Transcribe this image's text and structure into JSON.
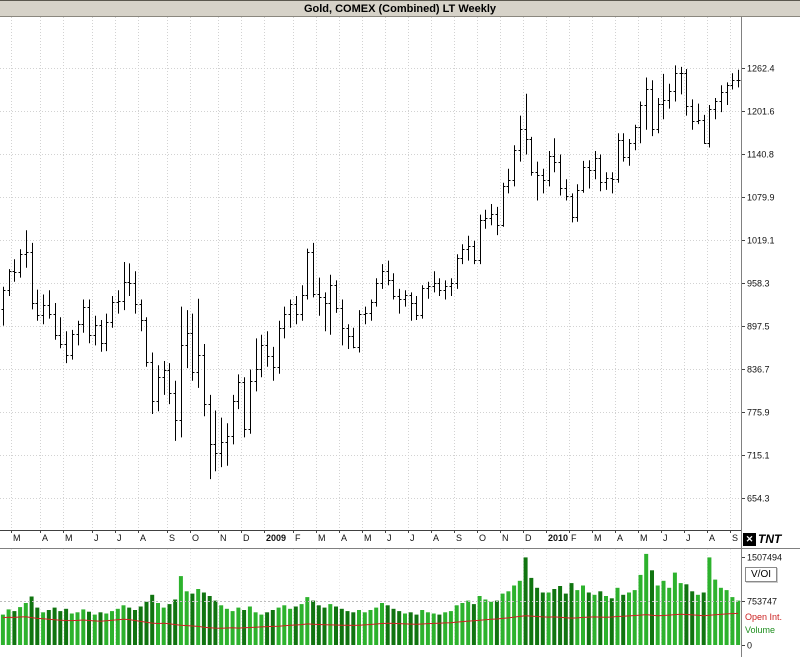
{
  "title_bar": {
    "title": "Gold, COMEX (Combined) LT Weekly"
  },
  "logo": {
    "text": "TNT"
  },
  "volume_panel": {
    "label": "V/OI",
    "open_interest_label": "Open Int.",
    "volume_label": "Volume"
  },
  "chart_data": {
    "type": "bar",
    "subtype": "ohlc-weekly-with-volume-open-interest",
    "title": "Gold, COMEX (Combined) LT Weekly",
    "price_axis": {
      "tick_labels": [
        "1262.4",
        "1201.6",
        "1140.8",
        "1079.9",
        "1019.1",
        "958.3",
        "897.5",
        "836.7",
        "775.9",
        "715.1",
        "654.3"
      ],
      "top_value": 1334.5,
      "bottom_value": 609.0
    },
    "volume_axis": {
      "tick_labels": [
        "1507494",
        "753747",
        "0"
      ],
      "max_value": 1507494
    },
    "legend": {
      "panel_label": "V/OI",
      "series": [
        "Open Int.",
        "Volume"
      ],
      "position": "right"
    },
    "grid": true,
    "x_axis": {
      "months": [
        {
          "label": "",
          "weeks": 2
        },
        {
          "label": "M",
          "weeks": 5
        },
        {
          "label": "A",
          "weeks": 4
        },
        {
          "label": "M",
          "weeks": 5
        },
        {
          "label": "J",
          "weeks": 4
        },
        {
          "label": "J",
          "weeks": 4
        },
        {
          "label": "A",
          "weeks": 5
        },
        {
          "label": "S",
          "weeks": 4
        },
        {
          "label": "O",
          "weeks": 5
        },
        {
          "label": "N",
          "weeks": 4
        },
        {
          "label": "D",
          "weeks": 4
        },
        {
          "label": "2009",
          "weeks": 5
        },
        {
          "label": "F",
          "weeks": 4
        },
        {
          "label": "M",
          "weeks": 4
        },
        {
          "label": "A",
          "weeks": 4
        },
        {
          "label": "M",
          "weeks": 4
        },
        {
          "label": "J",
          "weeks": 4
        },
        {
          "label": "J",
          "weeks": 4
        },
        {
          "label": "A",
          "weeks": 4
        },
        {
          "label": "S",
          "weeks": 4
        },
        {
          "label": "O",
          "weeks": 4
        },
        {
          "label": "N",
          "weeks": 4
        },
        {
          "label": "D",
          "weeks": 4
        },
        {
          "label": "2010",
          "weeks": 4
        },
        {
          "label": "F",
          "weeks": 4
        },
        {
          "label": "M",
          "weeks": 4
        },
        {
          "label": "A",
          "weeks": 4
        },
        {
          "label": "M",
          "weeks": 4
        },
        {
          "label": "J",
          "weeks": 4
        },
        {
          "label": "J",
          "weeks": 4
        },
        {
          "label": "A",
          "weeks": 4
        },
        {
          "label": "S",
          "weeks": 2
        }
      ]
    },
    "bars_format": [
      "open",
      "high",
      "low",
      "close",
      "volume",
      "open_interest"
    ],
    "bars": [
      [
        922,
        953,
        898,
        948,
        520000,
        470000
      ],
      [
        948,
        978,
        940,
        975,
        610000,
        475000
      ],
      [
        975,
        992,
        960,
        974,
        580000,
        472000
      ],
      [
        974,
        1006,
        966,
        999,
        650000,
        480000
      ],
      [
        999,
        1033,
        980,
        1002,
        720000,
        483000
      ],
      [
        1002,
        1015,
        921,
        930,
        830000,
        470000
      ],
      [
        930,
        949,
        905,
        913,
        640000,
        455000
      ],
      [
        913,
        942,
        900,
        927,
        560000,
        448000
      ],
      [
        927,
        948,
        908,
        915,
        600000,
        440000
      ],
      [
        915,
        930,
        878,
        885,
        640000,
        432000
      ],
      [
        885,
        910,
        866,
        872,
        580000,
        425000
      ],
      [
        872,
        890,
        845,
        857,
        620000,
        420000
      ],
      [
        857,
        892,
        850,
        886,
        540000,
        418000
      ],
      [
        886,
        905,
        870,
        900,
        560000,
        422000
      ],
      [
        900,
        935,
        888,
        925,
        610000,
        428000
      ],
      [
        925,
        935,
        873,
        885,
        570000,
        420000
      ],
      [
        885,
        912,
        870,
        899,
        520000,
        412000
      ],
      [
        899,
        906,
        861,
        873,
        560000,
        408000
      ],
      [
        873,
        915,
        862,
        903,
        540000,
        415000
      ],
      [
        903,
        940,
        895,
        931,
        580000,
        425000
      ],
      [
        931,
        948,
        915,
        933,
        620000,
        432000
      ],
      [
        933,
        988,
        920,
        960,
        680000,
        440000
      ],
      [
        960,
        986,
        940,
        958,
        640000,
        435000
      ],
      [
        958,
        975,
        915,
        928,
        600000,
        420000
      ],
      [
        928,
        935,
        890,
        906,
        660000,
        405000
      ],
      [
        906,
        910,
        840,
        846,
        740000,
        390000
      ],
      [
        846,
        860,
        773,
        792,
        860000,
        375000
      ],
      [
        792,
        842,
        777,
        825,
        720000,
        368000
      ],
      [
        825,
        848,
        800,
        835,
        640000,
        372000
      ],
      [
        835,
        845,
        787,
        803,
        700000,
        365000
      ],
      [
        803,
        820,
        735,
        764,
        780000,
        350000
      ],
      [
        764,
        925,
        740,
        870,
        1180000,
        340000
      ],
      [
        870,
        920,
        838,
        888,
        920000,
        332000
      ],
      [
        888,
        915,
        820,
        833,
        880000,
        325000
      ],
      [
        833,
        936,
        810,
        856,
        960000,
        318000
      ],
      [
        856,
        872,
        770,
        787,
        900000,
        305000
      ],
      [
        787,
        800,
        681,
        730,
        840000,
        295000
      ],
      [
        730,
        778,
        692,
        718,
        760000,
        290000
      ],
      [
        718,
        768,
        698,
        734,
        680000,
        288000
      ],
      [
        734,
        760,
        700,
        742,
        620000,
        292000
      ],
      [
        742,
        800,
        730,
        791,
        580000,
        295000
      ],
      [
        791,
        829,
        780,
        819,
        640000,
        290000
      ],
      [
        819,
        825,
        740,
        752,
        600000,
        295000
      ],
      [
        752,
        836,
        745,
        820,
        660000,
        300000
      ],
      [
        820,
        880,
        805,
        837,
        560000,
        305000
      ],
      [
        837,
        885,
        825,
        871,
        520000,
        310000
      ],
      [
        871,
        890,
        840,
        855,
        560000,
        315000
      ],
      [
        855,
        868,
        820,
        839,
        600000,
        318000
      ],
      [
        839,
        905,
        830,
        895,
        640000,
        322000
      ],
      [
        895,
        925,
        880,
        915,
        680000,
        330000
      ],
      [
        915,
        935,
        895,
        928,
        620000,
        338000
      ],
      [
        928,
        940,
        900,
        914,
        660000,
        342000
      ],
      [
        914,
        955,
        905,
        942,
        700000,
        350000
      ],
      [
        942,
        1007,
        935,
        1002,
        820000,
        362000
      ],
      [
        1002,
        1015,
        938,
        943,
        760000,
        355000
      ],
      [
        943,
        966,
        912,
        939,
        680000,
        352000
      ],
      [
        939,
        945,
        890,
        930,
        640000,
        348000
      ],
      [
        930,
        970,
        885,
        956,
        700000,
        345000
      ],
      [
        956,
        962,
        916,
        923,
        660000,
        342000
      ],
      [
        923,
        935,
        870,
        895,
        620000,
        340000
      ],
      [
        895,
        900,
        865,
        883,
        580000,
        338000
      ],
      [
        883,
        895,
        866,
        868,
        560000,
        336000
      ],
      [
        868,
        920,
        860,
        914,
        600000,
        340000
      ],
      [
        914,
        925,
        900,
        916,
        560000,
        345000
      ],
      [
        916,
        935,
        905,
        931,
        600000,
        352000
      ],
      [
        931,
        965,
        925,
        959,
        640000,
        360000
      ],
      [
        959,
        985,
        950,
        975,
        720000,
        368000
      ],
      [
        975,
        990,
        955,
        962,
        680000,
        372000
      ],
      [
        962,
        972,
        935,
        940,
        620000,
        370000
      ],
      [
        940,
        950,
        915,
        936,
        580000,
        366000
      ],
      [
        936,
        948,
        925,
        941,
        540000,
        362000
      ],
      [
        941,
        945,
        905,
        930,
        560000,
        358000
      ],
      [
        930,
        940,
        906,
        913,
        520000,
        355000
      ],
      [
        913,
        955,
        908,
        951,
        600000,
        360000
      ],
      [
        951,
        960,
        936,
        954,
        560000,
        366000
      ],
      [
        954,
        975,
        945,
        959,
        540000,
        370000
      ],
      [
        959,
        965,
        940,
        948,
        520000,
        374000
      ],
      [
        948,
        962,
        935,
        954,
        560000,
        378000
      ],
      [
        954,
        965,
        940,
        958,
        580000,
        382000
      ],
      [
        958,
        999,
        950,
        994,
        680000,
        392000
      ],
      [
        994,
        1013,
        985,
        1006,
        720000,
        400000
      ],
      [
        1006,
        1025,
        990,
        1010,
        760000,
        410000
      ],
      [
        1010,
        1018,
        985,
        991,
        700000,
        415000
      ],
      [
        991,
        1055,
        985,
        1048,
        840000,
        425000
      ],
      [
        1048,
        1062,
        1035,
        1050,
        780000,
        432000
      ],
      [
        1050,
        1070,
        1040,
        1056,
        740000,
        440000
      ],
      [
        1056,
        1066,
        1026,
        1040,
        760000,
        445000
      ],
      [
        1040,
        1100,
        1038,
        1095,
        880000,
        455000
      ],
      [
        1095,
        1120,
        1085,
        1104,
        920000,
        465000
      ],
      [
        1104,
        1153,
        1095,
        1146,
        1020000,
        478000
      ],
      [
        1146,
        1195,
        1130,
        1176,
        1100000,
        490000
      ],
      [
        1176,
        1226,
        1140,
        1162,
        1500000,
        500000
      ],
      [
        1162,
        1165,
        1110,
        1115,
        1150000,
        495000
      ],
      [
        1115,
        1130,
        1075,
        1111,
        980000,
        488000
      ],
      [
        1111,
        1120,
        1085,
        1104,
        900000,
        482000
      ],
      [
        1104,
        1145,
        1095,
        1138,
        900000,
        478000
      ],
      [
        1138,
        1163,
        1115,
        1130,
        960000,
        482000
      ],
      [
        1130,
        1140,
        1082,
        1092,
        1010000,
        475000
      ],
      [
        1092,
        1105,
        1075,
        1081,
        880000,
        468000
      ],
      [
        1081,
        1085,
        1044,
        1052,
        1060000,
        460000
      ],
      [
        1052,
        1098,
        1045,
        1090,
        940000,
        465000
      ],
      [
        1090,
        1131,
        1086,
        1122,
        1020000,
        472000
      ],
      [
        1122,
        1132,
        1092,
        1118,
        900000,
        478000
      ],
      [
        1118,
        1145,
        1105,
        1135,
        860000,
        482000
      ],
      [
        1135,
        1140,
        1088,
        1101,
        920000,
        478000
      ],
      [
        1101,
        1115,
        1090,
        1107,
        840000,
        475000
      ],
      [
        1107,
        1115,
        1085,
        1105,
        800000,
        480000
      ],
      [
        1105,
        1170,
        1100,
        1161,
        980000,
        488000
      ],
      [
        1161,
        1170,
        1130,
        1137,
        860000,
        492000
      ],
      [
        1137,
        1162,
        1124,
        1157,
        900000,
        498000
      ],
      [
        1157,
        1182,
        1146,
        1179,
        940000,
        505000
      ],
      [
        1179,
        1215,
        1156,
        1210,
        1200000,
        512000
      ],
      [
        1210,
        1249,
        1175,
        1232,
        1560000,
        520000
      ],
      [
        1232,
        1245,
        1166,
        1176,
        1280000,
        508000
      ],
      [
        1176,
        1220,
        1170,
        1212,
        1020000,
        500000
      ],
      [
        1212,
        1254,
        1190,
        1217,
        1100000,
        505000
      ],
      [
        1217,
        1240,
        1205,
        1230,
        980000,
        512000
      ],
      [
        1230,
        1266,
        1215,
        1256,
        1240000,
        520000
      ],
      [
        1256,
        1264,
        1225,
        1256,
        1060000,
        528000
      ],
      [
        1256,
        1261,
        1195,
        1209,
        1040000,
        522000
      ],
      [
        1209,
        1218,
        1175,
        1188,
        920000,
        515000
      ],
      [
        1188,
        1212,
        1183,
        1189,
        860000,
        508000
      ],
      [
        1189,
        1196,
        1155,
        1157,
        900000,
        500000
      ],
      [
        1157,
        1210,
        1150,
        1205,
        1500000,
        510000
      ],
      [
        1205,
        1220,
        1190,
        1216,
        1120000,
        518000
      ],
      [
        1216,
        1238,
        1200,
        1228,
        980000,
        525000
      ],
      [
        1228,
        1242,
        1210,
        1238,
        940000,
        532000
      ],
      [
        1238,
        1255,
        1232,
        1246,
        820000,
        538000
      ],
      [
        1246,
        1260,
        1235,
        1246,
        760000,
        542000
      ]
    ],
    "colors": {
      "bar": "#000000",
      "grid": "#d2d2d2",
      "panel_grid": "#e8e8e8",
      "volume_up": "#2db22d",
      "volume_down": "#107410",
      "open_interest": "#cc2222",
      "axis_text": "#111111"
    }
  }
}
